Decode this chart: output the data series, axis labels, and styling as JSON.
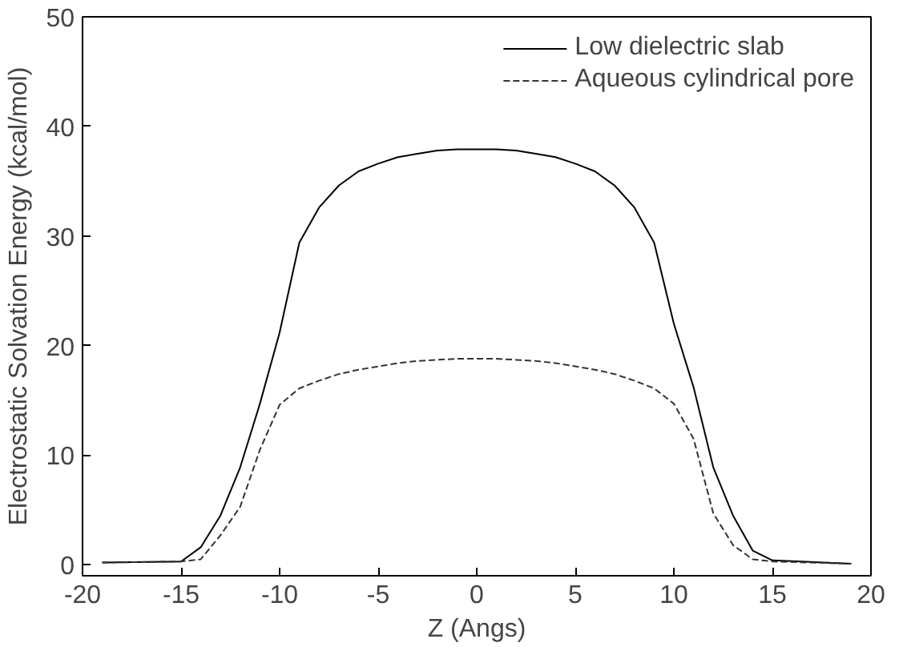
{
  "chart_data": {
    "type": "line",
    "xlabel": "Z (Angs)",
    "ylabel": "Electrostatic Solvation Energy (kcal/mol)",
    "x": [
      -19,
      -15,
      -14,
      -13,
      -12,
      -11,
      -10,
      -9,
      -8,
      -7,
      -6,
      -5,
      -4,
      -3,
      -2,
      -1,
      0,
      1,
      2,
      3,
      4,
      5,
      6,
      7,
      8,
      9,
      10,
      11,
      12,
      13,
      14,
      15,
      19
    ],
    "series": [
      {
        "name": "Low dielectric slab",
        "color": "#000000",
        "line_style": "solid",
        "values": [
          0.2,
          0.3,
          1.6,
          4.5,
          8.9,
          14.7,
          21.2,
          29.4,
          32.6,
          34.6,
          35.9,
          36.6,
          37.2,
          37.5,
          37.8,
          37.9,
          37.9,
          37.9,
          37.8,
          37.5,
          37.2,
          36.6,
          35.9,
          34.6,
          32.6,
          29.4,
          22,
          16.2,
          8.9,
          4.5,
          1.3,
          0.4,
          0.1
        ]
      },
      {
        "name": "Aqueous cylindrical pore",
        "color": "#333333",
        "line_style": "dashed",
        "values": [
          0.2,
          0.3,
          0.5,
          2.7,
          5.3,
          10.5,
          14.6,
          16.1,
          16.8,
          17.4,
          17.8,
          18.1,
          18.4,
          18.6,
          18.7,
          18.8,
          18.8,
          18.8,
          18.7,
          18.6,
          18.4,
          18.1,
          17.8,
          17.4,
          16.8,
          16.1,
          14.7,
          11.5,
          4.7,
          1.8,
          0.5,
          0.3,
          0.1
        ]
      }
    ],
    "xlim": [
      -20,
      20
    ],
    "xticks": [
      -20,
      -15,
      -10,
      -5,
      0,
      5,
      10,
      15,
      20
    ],
    "ylim": [
      -1,
      50
    ],
    "yticks": [
      0,
      10,
      20,
      30,
      40,
      50
    ],
    "grid": false,
    "legend": "top right",
    "marker": "none"
  }
}
